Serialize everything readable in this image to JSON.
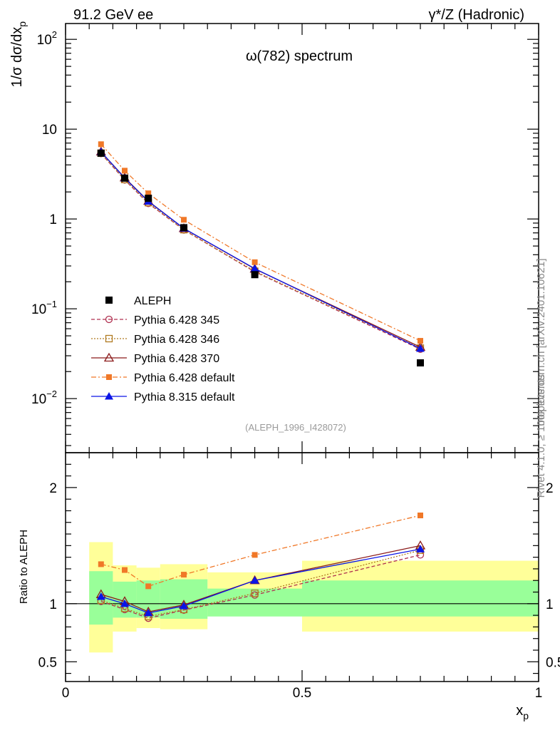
{
  "header": {
    "left": "91.2 GeV ee",
    "right": "γ*/Z (Hadronic)"
  },
  "side_labels": {
    "rivet": "Rivet 4.1.0, ≥ 100k events",
    "mcplots": "mcplots.cern.ch [arXiv:2401.10621]"
  },
  "chart_data": [
    {
      "type": "scatter",
      "panel": "main",
      "title": "ω(782) spectrum",
      "watermark": "(ALEPH_1996_I428072)",
      "xlabel": "x_p",
      "ylabel": "1/σ dσ/dx_p",
      "yscale": "log",
      "xlim": [
        0,
        1
      ],
      "ylim": [
        0.0025,
        150
      ],
      "ytick_labels": [
        {
          "value": 0.01,
          "base": "10",
          "exp": "−2"
        },
        {
          "value": 0.1,
          "base": "10",
          "exp": "−1"
        },
        {
          "value": 1,
          "base": "1",
          "exp": ""
        },
        {
          "value": 10,
          "base": "10",
          "exp": ""
        },
        {
          "value": 100,
          "base": "10",
          "exp": "2"
        }
      ],
      "x": [
        0.075,
        0.125,
        0.175,
        0.25,
        0.4,
        0.75
      ],
      "series": [
        {
          "name": "ALEPH",
          "style": "data",
          "color": "#000000",
          "values": [
            5.4,
            2.85,
            1.7,
            0.8,
            0.24,
            0.025
          ]
        },
        {
          "name": "Pythia 6.428 345",
          "style": "dashed",
          "color": "#b03050",
          "marker": "circle-open",
          "values": [
            5.35,
            2.72,
            1.49,
            0.755,
            0.258,
            0.0355
          ]
        },
        {
          "name": "Pythia 6.428 346",
          "style": "dotted",
          "color": "#b07a20",
          "marker": "square-open",
          "values": [
            5.4,
            2.75,
            1.52,
            0.76,
            0.262,
            0.0365
          ]
        },
        {
          "name": "Pythia 6.428 370",
          "style": "solid",
          "color": "#8b1a1a",
          "marker": "triangle-open",
          "values": [
            5.6,
            2.88,
            1.58,
            0.785,
            0.278,
            0.0375
          ]
        },
        {
          "name": "Pythia 6.428 default",
          "style": "dashdot",
          "color": "#f07828",
          "marker": "square-filled",
          "values": [
            6.8,
            3.45,
            1.93,
            0.98,
            0.33,
            0.044
          ]
        },
        {
          "name": "Pythia 8.315 default",
          "style": "solid",
          "color": "#0a14e6",
          "marker": "triangle-filled",
          "values": [
            5.6,
            2.85,
            1.57,
            0.785,
            0.28,
            0.036
          ]
        }
      ]
    },
    {
      "type": "scatter",
      "panel": "ratio",
      "ylabel": "Ratio to ALEPH",
      "xlabel": "x_p",
      "xlim": [
        0,
        1
      ],
      "ylim": [
        0.33,
        2.3
      ],
      "ytick_labels": [
        "0.5",
        "1",
        "2"
      ],
      "xtick_labels": [
        "0",
        "0.5",
        "1"
      ],
      "reference": 1,
      "bands": [
        {
          "xlo": 0.05,
          "xhi": 0.1,
          "green": [
            0.82,
            1.28
          ],
          "yellow": [
            0.58,
            1.53
          ]
        },
        {
          "xlo": 0.1,
          "xhi": 0.15,
          "green": [
            0.88,
            1.19
          ],
          "yellow": [
            0.76,
            1.33
          ]
        },
        {
          "xlo": 0.15,
          "xhi": 0.2,
          "green": [
            0.88,
            1.2
          ],
          "yellow": [
            0.79,
            1.31
          ]
        },
        {
          "xlo": 0.2,
          "xhi": 0.3,
          "green": [
            0.87,
            1.21
          ],
          "yellow": [
            0.78,
            1.34
          ]
        },
        {
          "xlo": 0.3,
          "xhi": 0.5,
          "green": [
            0.89,
            1.13
          ],
          "yellow": [
            0.9,
            1.27
          ]
        },
        {
          "xlo": 0.5,
          "xhi": 1.0,
          "green": [
            0.89,
            1.2
          ],
          "yellow": [
            0.76,
            1.37
          ]
        }
      ],
      "x": [
        0.075,
        0.125,
        0.175,
        0.25,
        0.4,
        0.75
      ],
      "series": [
        {
          "name": "Pythia 6.428 345",
          "values": [
            1.02,
            0.95,
            0.875,
            0.945,
            1.075,
            1.42
          ]
        },
        {
          "name": "Pythia 6.428 346",
          "values": [
            1.03,
            0.96,
            0.89,
            0.95,
            1.09,
            1.46
          ]
        },
        {
          "name": "Pythia 6.428 370",
          "values": [
            1.08,
            1.02,
            0.93,
            0.99,
            1.2,
            1.5
          ]
        },
        {
          "name": "Pythia 6.428 default",
          "values": [
            1.34,
            1.29,
            1.15,
            1.25,
            1.42,
            1.76
          ]
        },
        {
          "name": "Pythia 8.315 default",
          "values": [
            1.06,
            1.0,
            0.92,
            0.98,
            1.2,
            1.47
          ]
        }
      ]
    }
  ]
}
